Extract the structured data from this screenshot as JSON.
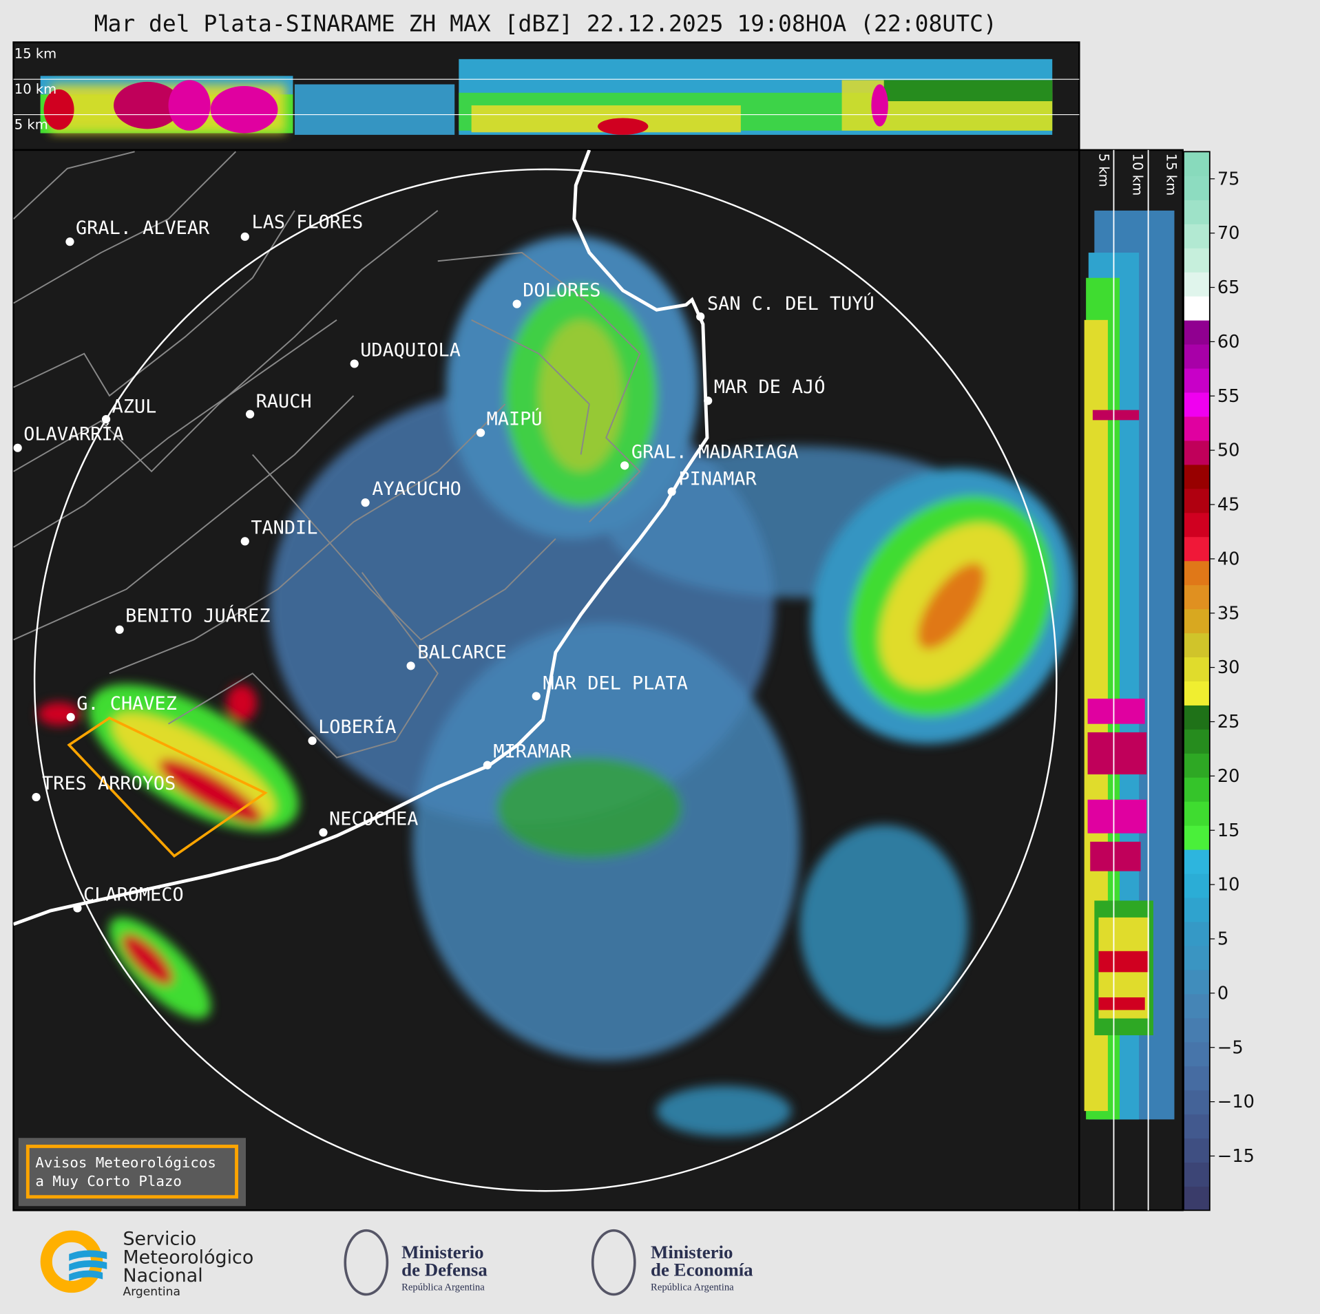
{
  "title": "Mar del Plata-SINARAME ZH MAX [dBZ] 22.12.2025 19:08HOA (22:08UTC)",
  "top_section": {
    "labels": [
      "15 km",
      "10 km",
      "5 km"
    ]
  },
  "right_section": {
    "labels": [
      "5 km",
      "10 km",
      "15 km"
    ]
  },
  "cities": [
    "GRAL. ALVEAR",
    "LAS FLORES",
    "DOLORES",
    "SAN C. DEL TUYÚ",
    "UDAQUIOLA",
    "AZUL",
    "RAUCH",
    "OLAVARRÍA",
    "MAR DE AJÓ",
    "MAIPÚ",
    "GRAL. MADARIAGA",
    "PINAMAR",
    "AYACUCHO",
    "TANDIL",
    "BENITO JUÁREZ",
    "BALCARCE",
    "MAR DEL PLATA",
    "G. CHAVEZ",
    "LOBERÍA",
    "MIRAMAR",
    "TRES ARROYOS",
    "NECOCHEA",
    "CLAROMECO"
  ],
  "legend_box": {
    "line1": "Avisos Meteorológicos",
    "line2": "a Muy Corto Plazo",
    "border_color": "#ffa500"
  },
  "colorbar": {
    "unit": "dBZ",
    "range": [
      -20,
      77.5
    ],
    "ticks": [
      "75",
      "70",
      "65",
      "60",
      "55",
      "50",
      "45",
      "40",
      "35",
      "30",
      "25",
      "20",
      "15",
      "10",
      "5",
      "0",
      "−5",
      "−10",
      "−15"
    ],
    "colors": [
      "#3a3c6a",
      "#3c4576",
      "#3f4f82",
      "#42598e",
      "#446398",
      "#466ca2",
      "#4775aa",
      "#477db0",
      "#4585b6",
      "#408dbc",
      "#3a95c2",
      "#3599c6",
      "#2fa3ce",
      "#2badd6",
      "#2db5de",
      "#4af03a",
      "#3fdc30",
      "#35c42a",
      "#2ea824",
      "#268c1e",
      "#1f7218",
      "#f0ee30",
      "#e0dc2c",
      "#d0c42a",
      "#d8a820",
      "#e09020",
      "#e07818",
      "#f01838",
      "#d00020",
      "#b00010",
      "#980000",
      "#c0005a",
      "#e000a0",
      "#f000f0",
      "#c800c8",
      "#a800a8",
      "#900090",
      "#ffffff",
      "#e0f5ec",
      "#c6efdc",
      "#b2e9d2",
      "#9ee2c8",
      "#8ddcc0",
      "#88dabc"
    ]
  },
  "logos": {
    "smn": [
      "Servicio",
      "Meteorológico",
      "Nacional",
      "Argentina"
    ],
    "defensa": [
      "Ministerio",
      "de Defensa",
      "República Argentina"
    ],
    "economia": [
      "Ministerio",
      "de Economía",
      "República Argentina"
    ]
  }
}
